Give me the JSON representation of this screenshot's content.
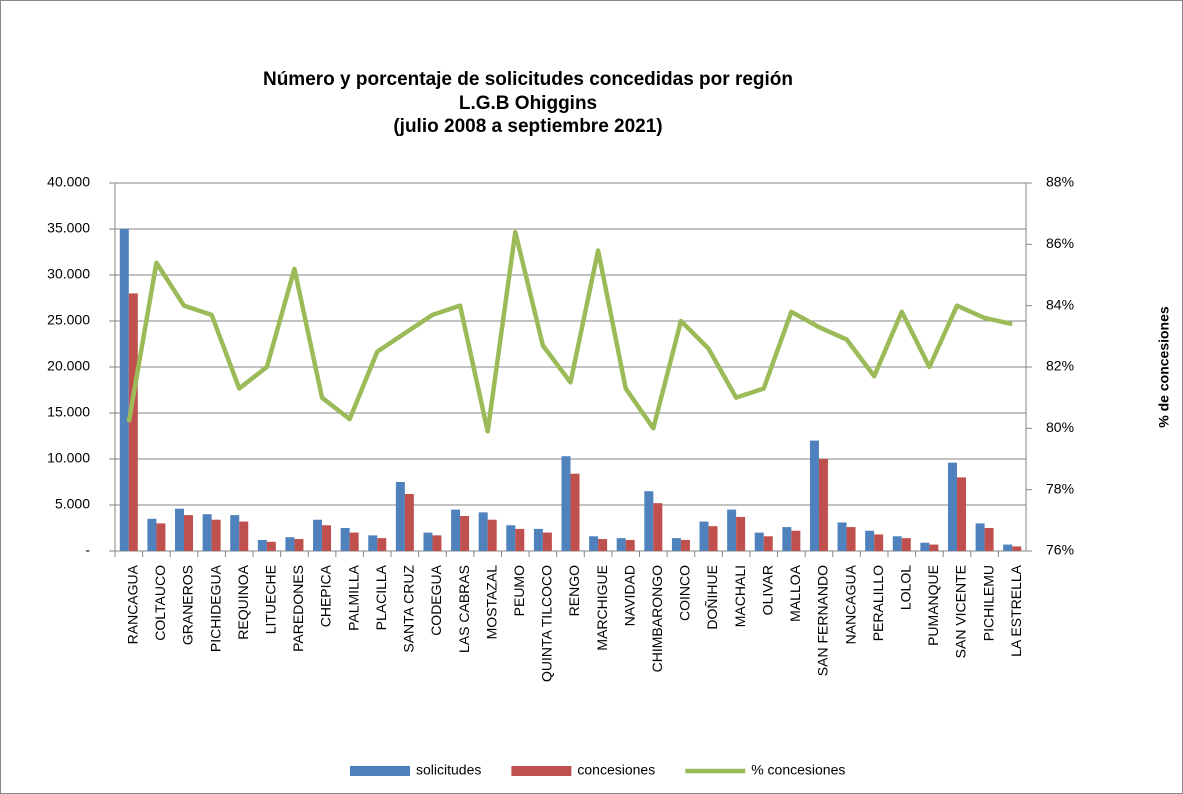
{
  "chart_data": {
    "type": "bar-line",
    "title": [
      "Número y porcentaje de solicitudes concedidas por región",
      "L.G.B Ohiggins",
      "(julio 2008 a septiembre 2021)"
    ],
    "y2label": "% de concesiones",
    "categories": [
      "RANCAGUA",
      "COLTAUCO",
      "GRANEROS",
      "PICHIDEGUA",
      "REQUINOA",
      "LITUECHE",
      "PAREDONES",
      "CHEPICA",
      "PALMILLA",
      "PLACILLA",
      "SANTA CRUZ",
      "CODEGUA",
      "LAS CABRAS",
      "MOSTAZAL",
      "PEUMO",
      "QUINTA TILCOCO",
      "RENGO",
      "MARCHIGUE",
      "NAVIDAD",
      "CHIMBARONGO",
      "COINCO",
      "DOÑIHUE",
      "MACHALI",
      "OLIVAR",
      "MALLOA",
      "SAN FERNANDO",
      "NANCAGUA",
      "PERALILLO",
      "LOLOL",
      "PUMANQUE",
      "SAN VICENTE",
      "PICHILEMU",
      "LA ESTRELLA"
    ],
    "series": [
      {
        "name": "solicitudes",
        "type": "bar",
        "color": "#4f81bd",
        "values": [
          35000,
          3500,
          4600,
          4000,
          3900,
          1200,
          1500,
          3400,
          2500,
          1700,
          7500,
          2000,
          4500,
          4200,
          2800,
          2400,
          10300,
          1600,
          1400,
          6500,
          1400,
          3200,
          4500,
          2000,
          2600,
          12000,
          3100,
          2200,
          1600,
          900,
          9600,
          3000,
          700
        ]
      },
      {
        "name": "concesiones",
        "type": "bar",
        "color": "#c0504d",
        "values": [
          28000,
          3000,
          3900,
          3400,
          3200,
          1000,
          1300,
          2800,
          2000,
          1400,
          6200,
          1700,
          3800,
          3400,
          2400,
          2000,
          8400,
          1300,
          1200,
          5200,
          1200,
          2700,
          3700,
          1600,
          2200,
          10000,
          2600,
          1800,
          1400,
          700,
          8000,
          2500,
          500
        ]
      },
      {
        "name": "% concesiones",
        "type": "line",
        "axis": "y2",
        "color": "#9bbb59",
        "values": [
          80.2,
          85.4,
          84.0,
          83.7,
          81.3,
          82.0,
          85.2,
          81.0,
          80.3,
          82.5,
          83.1,
          83.7,
          84.0,
          79.9,
          86.4,
          82.7,
          81.5,
          85.8,
          81.3,
          80.0,
          83.5,
          82.6,
          81.0,
          81.3,
          83.8,
          83.3,
          82.9,
          81.7,
          83.8,
          82.0,
          84.0,
          83.6,
          83.4
        ]
      }
    ],
    "ylim": [
      0,
      40000
    ],
    "yticks": [
      {
        "value": 0,
        "label": "-"
      },
      {
        "value": 5000,
        "label": "5.000"
      },
      {
        "value": 10000,
        "label": "10.000"
      },
      {
        "value": 15000,
        "label": "15.000"
      },
      {
        "value": 20000,
        "label": "20.000"
      },
      {
        "value": 25000,
        "label": "25.000"
      },
      {
        "value": 30000,
        "label": "30.000"
      },
      {
        "value": 35000,
        "label": "35.000"
      },
      {
        "value": 40000,
        "label": "40.000"
      }
    ],
    "y2lim": [
      76,
      88
    ],
    "y2ticks": [
      {
        "value": 76,
        "label": "76%"
      },
      {
        "value": 78,
        "label": "78%"
      },
      {
        "value": 80,
        "label": "80%"
      },
      {
        "value": 82,
        "label": "82%"
      },
      {
        "value": 84,
        "label": "84%"
      },
      {
        "value": 86,
        "label": "86%"
      },
      {
        "value": 88,
        "label": "88%"
      }
    ],
    "grid": true,
    "legend": "bottom"
  }
}
